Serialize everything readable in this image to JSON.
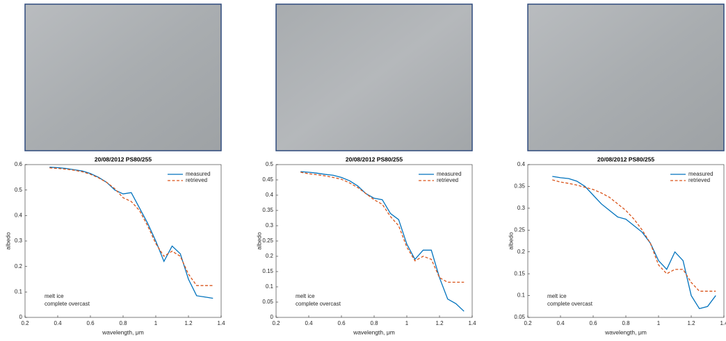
{
  "chart_data": [
    {
      "type": "line",
      "title": "20/08/2012 PS80/255",
      "x_label": "wavelength, μm",
      "y_label": "albedo",
      "x": [
        0.35,
        0.4,
        0.45,
        0.5,
        0.55,
        0.6,
        0.65,
        0.7,
        0.75,
        0.8,
        0.85,
        0.9,
        0.95,
        1.0,
        1.05,
        1.1,
        1.15,
        1.2,
        1.25,
        1.3,
        1.35
      ],
      "series": [
        {
          "name": "measured",
          "color": "#0072bd",
          "values": [
            0.59,
            0.588,
            0.585,
            0.58,
            0.575,
            0.565,
            0.55,
            0.53,
            0.5,
            0.485,
            0.49,
            0.43,
            0.37,
            0.3,
            0.22,
            0.28,
            0.25,
            0.15,
            0.085,
            0.08,
            0.075
          ]
        },
        {
          "name": "retrieved",
          "color": "#d95319",
          "dashed": true,
          "values": [
            0.587,
            0.585,
            0.582,
            0.578,
            0.572,
            0.562,
            0.548,
            0.53,
            0.505,
            0.47,
            0.455,
            0.42,
            0.36,
            0.29,
            0.24,
            0.26,
            0.24,
            0.17,
            0.125,
            0.125,
            0.125
          ]
        }
      ],
      "xlim": [
        0.2,
        1.4
      ],
      "xticks": [
        0.2,
        0.4,
        0.6,
        0.8,
        1,
        1.2,
        1.4
      ],
      "ylim": [
        0,
        0.6
      ],
      "yticks": [
        0,
        0.1,
        0.2,
        0.3,
        0.4,
        0.5,
        0.6
      ],
      "legend": "upper right",
      "annotations": [
        "melt ice",
        "complete overcast"
      ]
    },
    {
      "type": "line",
      "title": "20/08/2012 PS80/255",
      "x_label": "wavelength, μm",
      "y_label": "albedo",
      "x": [
        0.35,
        0.4,
        0.45,
        0.5,
        0.55,
        0.6,
        0.65,
        0.7,
        0.75,
        0.8,
        0.85,
        0.9,
        0.95,
        1.0,
        1.05,
        1.1,
        1.15,
        1.2,
        1.25,
        1.3,
        1.35
      ],
      "series": [
        {
          "name": "measured",
          "color": "#0072bd",
          "values": [
            0.477,
            0.475,
            0.472,
            0.468,
            0.465,
            0.458,
            0.447,
            0.43,
            0.405,
            0.39,
            0.385,
            0.34,
            0.32,
            0.24,
            0.19,
            0.22,
            0.22,
            0.13,
            0.06,
            0.045,
            0.02
          ]
        },
        {
          "name": "retrieved",
          "color": "#d95319",
          "dashed": true,
          "values": [
            0.475,
            0.47,
            0.467,
            0.463,
            0.458,
            0.452,
            0.44,
            0.425,
            0.405,
            0.385,
            0.37,
            0.33,
            0.3,
            0.23,
            0.185,
            0.2,
            0.19,
            0.13,
            0.115,
            0.115,
            0.115
          ]
        }
      ],
      "xlim": [
        0.2,
        1.4
      ],
      "xticks": [
        0.2,
        0.4,
        0.6,
        0.8,
        1,
        1.2,
        1.4
      ],
      "ylim": [
        0,
        0.5
      ],
      "yticks": [
        0,
        0.05,
        0.1,
        0.15,
        0.2,
        0.25,
        0.3,
        0.35,
        0.4,
        0.45,
        0.5
      ],
      "legend": "upper right",
      "annotations": [
        "melt ice",
        "complete overcast"
      ]
    },
    {
      "type": "line",
      "title": "20/08/2012 PS80/255",
      "x_label": "wavelength, μm",
      "y_label": "albedo",
      "x": [
        0.35,
        0.4,
        0.45,
        0.5,
        0.55,
        0.6,
        0.65,
        0.7,
        0.75,
        0.8,
        0.85,
        0.9,
        0.95,
        1.0,
        1.05,
        1.1,
        1.15,
        1.2,
        1.25,
        1.3,
        1.35
      ],
      "series": [
        {
          "name": "measured",
          "color": "#0072bd",
          "values": [
            0.373,
            0.37,
            0.368,
            0.362,
            0.35,
            0.33,
            0.31,
            0.295,
            0.28,
            0.275,
            0.26,
            0.245,
            0.22,
            0.18,
            0.16,
            0.2,
            0.18,
            0.1,
            0.07,
            0.075,
            0.1
          ]
        },
        {
          "name": "retrieved",
          "color": "#d95319",
          "dashed": true,
          "values": [
            0.365,
            0.36,
            0.357,
            0.353,
            0.348,
            0.343,
            0.335,
            0.325,
            0.31,
            0.295,
            0.275,
            0.25,
            0.22,
            0.17,
            0.15,
            0.16,
            0.16,
            0.13,
            0.11,
            0.11,
            0.11
          ]
        }
      ],
      "xlim": [
        0.2,
        1.4
      ],
      "xticks": [
        0.2,
        0.4,
        0.6,
        0.8,
        1,
        1.2,
        1.4
      ],
      "ylim": [
        0.05,
        0.4
      ],
      "yticks": [
        0.05,
        0.1,
        0.15,
        0.2,
        0.25,
        0.3,
        0.35,
        0.4
      ],
      "legend": "upper right",
      "annotations": [
        "melt ice",
        "complete overcast"
      ]
    }
  ]
}
